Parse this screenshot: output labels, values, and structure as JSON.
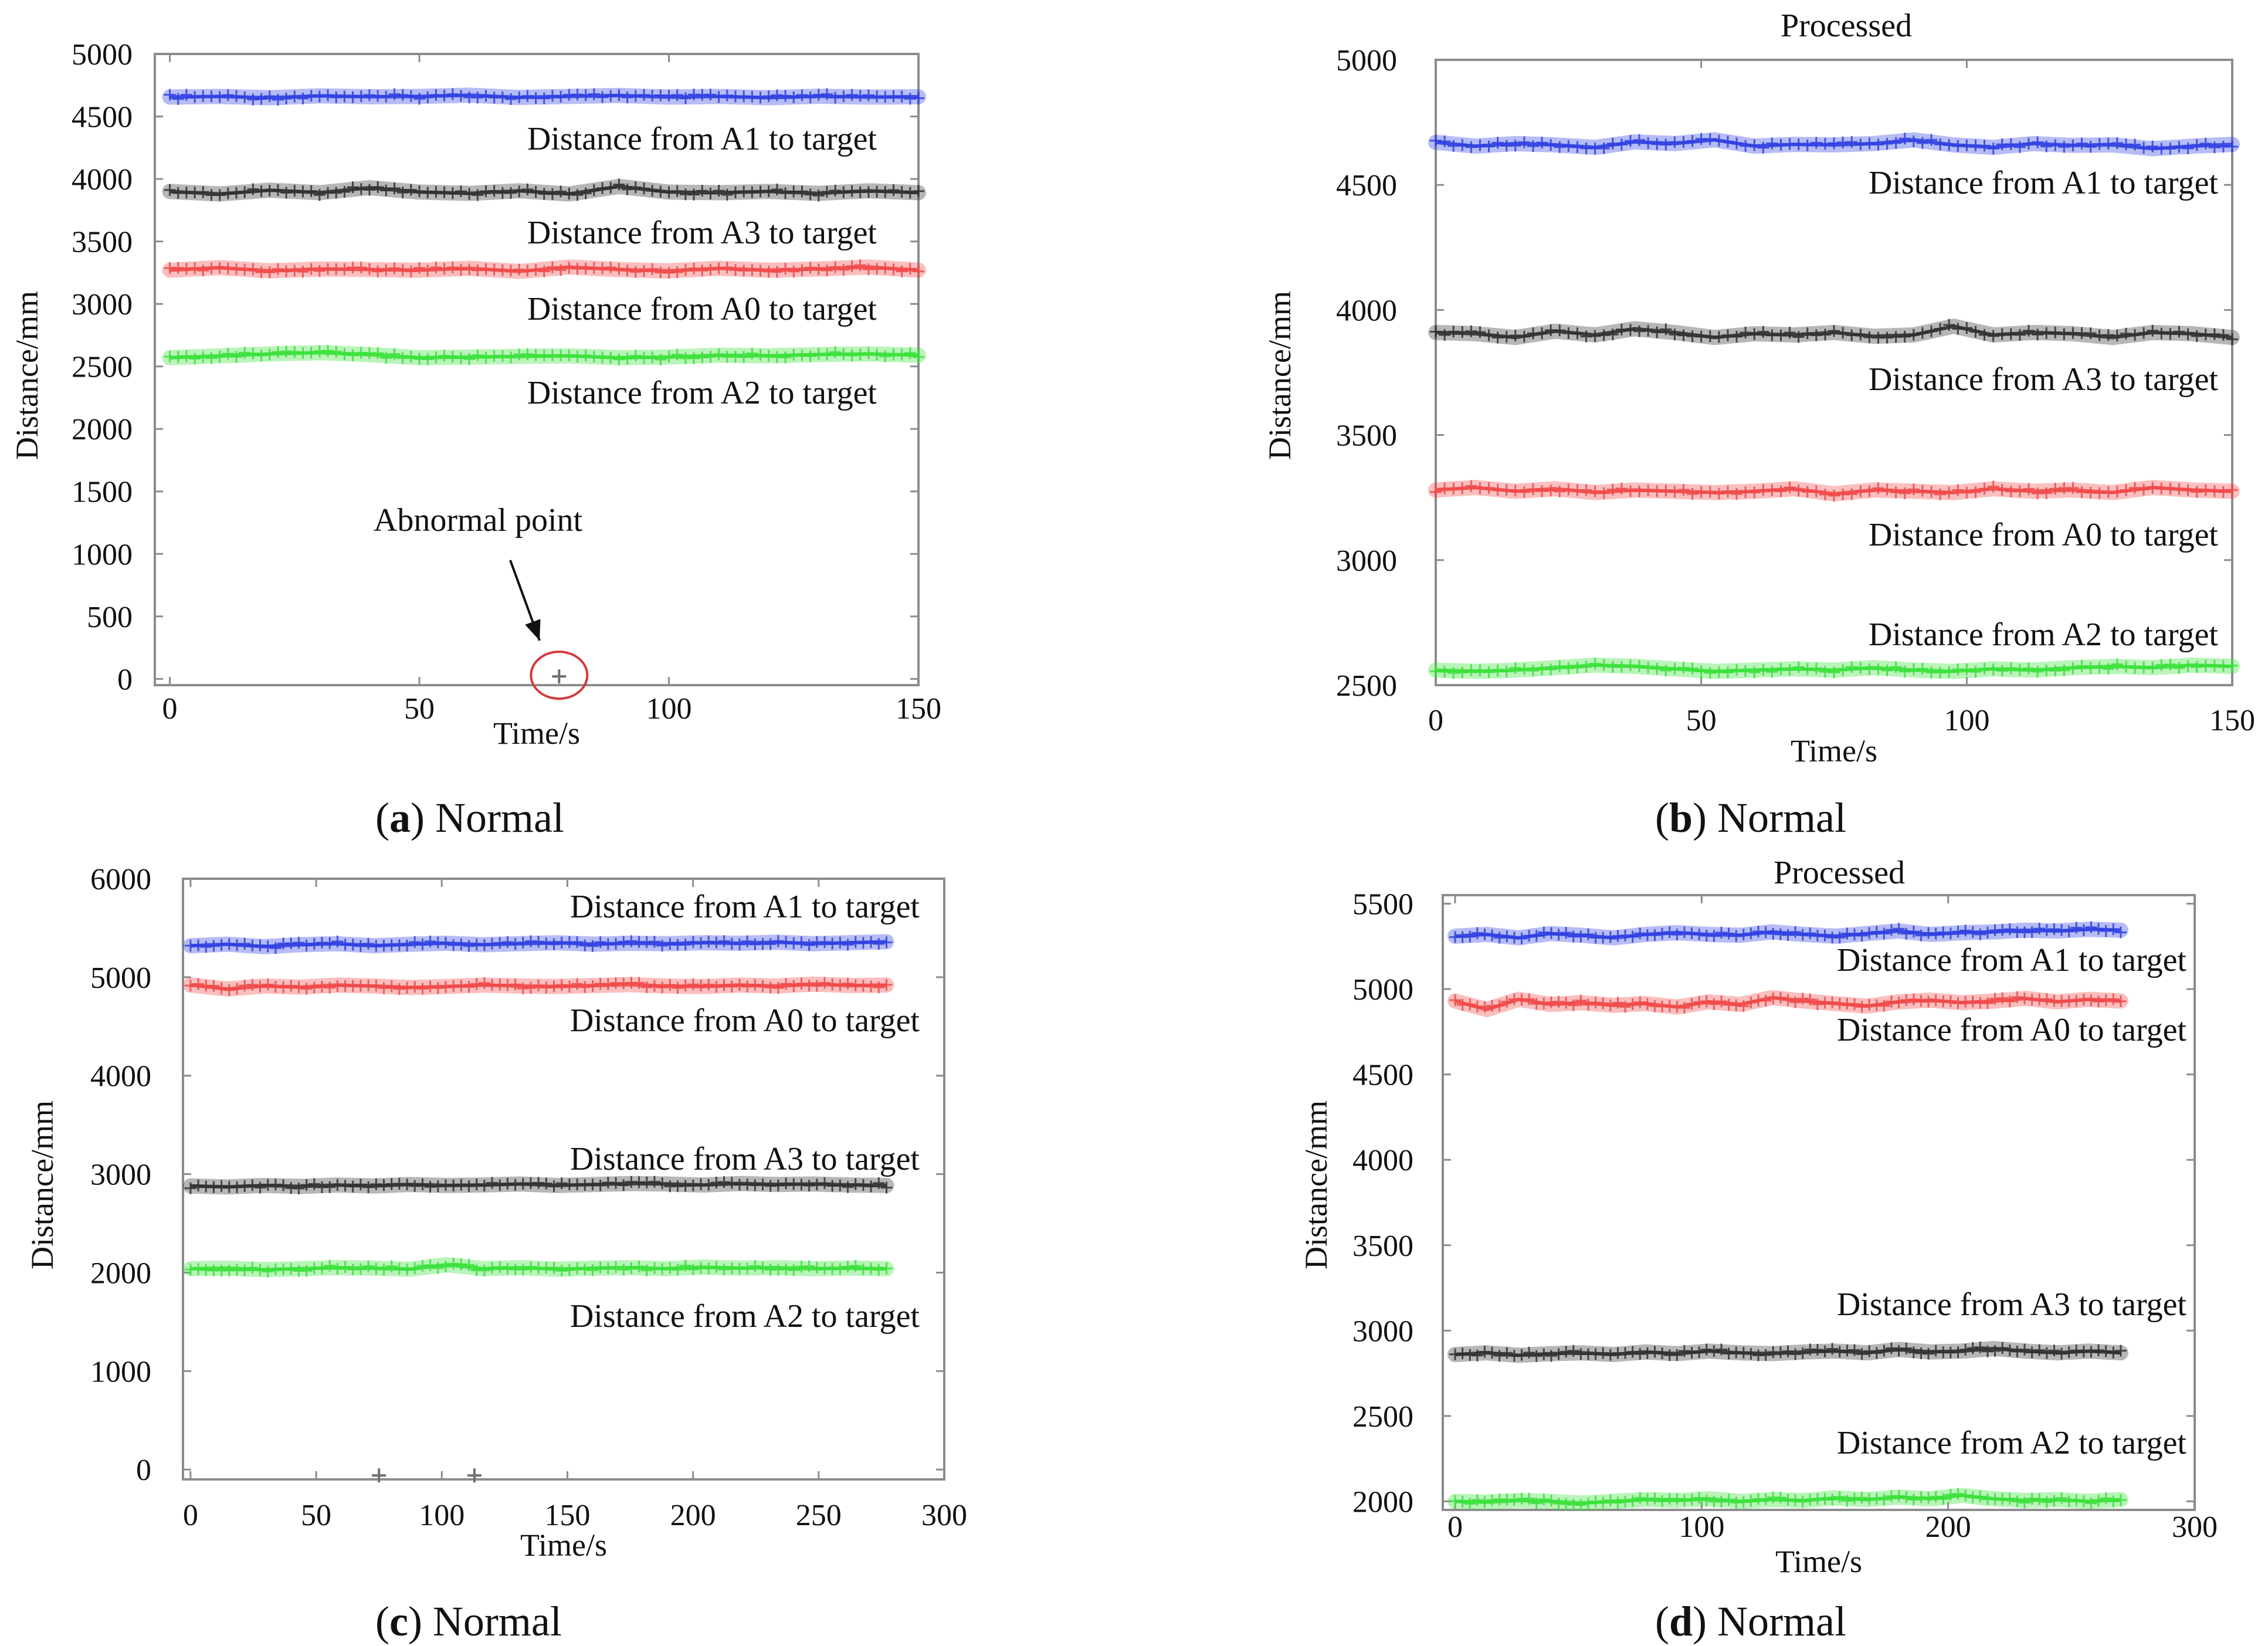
{
  "chart_data": [
    {
      "panel": "a",
      "type": "line",
      "title": "",
      "caption_letter": "a",
      "caption_text": "Normal",
      "xlabel": "Time/s",
      "ylabel": "Distance/mm",
      "xlim": [
        -3,
        150
      ],
      "ylim": [
        -50,
        5000
      ],
      "xticks": [
        0,
        50,
        100,
        150
      ],
      "yticks": [
        0,
        500,
        1000,
        1500,
        2000,
        2500,
        3000,
        3500,
        4000,
        4500,
        5000
      ],
      "series": [
        {
          "name": "Distance from A1 to target",
          "color": "#2f3fe0",
          "x_end": 150,
          "values": [
            4655,
            4660,
            4650,
            4665,
            4658,
            4660,
            4670,
            4652,
            4660,
            4668,
            4655,
            4660,
            4650,
            4662,
            4655,
            4658
          ]
        },
        {
          "name": "Distance from A3 to target",
          "color": "#303030",
          "x_end": 150,
          "values": [
            3900,
            3880,
            3910,
            3890,
            3930,
            3895,
            3885,
            3905,
            3880,
            3940,
            3895,
            3890,
            3900,
            3885,
            3905,
            3890
          ]
        },
        {
          "name": "Distance from A0 to target",
          "color": "#f04848",
          "x_end": 150,
          "values": [
            3270,
            3290,
            3265,
            3280,
            3275,
            3270,
            3285,
            3260,
            3295,
            3275,
            3265,
            3285,
            3270,
            3280,
            3295,
            3270
          ]
        },
        {
          "name": "Distance from A2 to target",
          "color": "#39e039",
          "x_end": 150,
          "values": [
            2570,
            2585,
            2600,
            2610,
            2595,
            2570,
            2575,
            2580,
            2585,
            2570,
            2575,
            2590,
            2585,
            2595,
            2600,
            2590
          ]
        }
      ],
      "outliers": [
        {
          "x": 78,
          "y": 20
        }
      ],
      "annotation": {
        "text": "Abnormal point",
        "x": 78,
        "y": 20
      }
    },
    {
      "panel": "b",
      "type": "line",
      "title": "Processed",
      "caption_letter": "b",
      "caption_text": "Normal",
      "xlabel": "Time/s",
      "ylabel": "Distance/mm",
      "xlim": [
        0,
        150
      ],
      "ylim": [
        2500,
        5000
      ],
      "xticks": [
        0,
        50,
        100,
        150
      ],
      "yticks": [
        2500,
        3000,
        3500,
        4000,
        4500,
        5000
      ],
      "series": [
        {
          "name": "Distance from A1 to target",
          "color": "#2f3fe0",
          "x_end": 150,
          "values": [
            4670,
            4655,
            4665,
            4660,
            4650,
            4672,
            4665,
            4680,
            4655,
            4662,
            4660,
            4665,
            4680,
            4660,
            4650,
            4665,
            4658,
            4660,
            4645,
            4655,
            4662
          ]
        },
        {
          "name": "Distance from A3 to target",
          "color": "#303030",
          "x_end": 150,
          "values": [
            3910,
            3905,
            3890,
            3915,
            3900,
            3925,
            3910,
            3890,
            3905,
            3900,
            3910,
            3895,
            3900,
            3935,
            3900,
            3910,
            3905,
            3890,
            3910,
            3905,
            3890
          ]
        },
        {
          "name": "Distance from A0 to target",
          "color": "#f04848",
          "x_end": 150,
          "values": [
            3280,
            3290,
            3275,
            3285,
            3270,
            3280,
            3275,
            3270,
            3275,
            3285,
            3265,
            3280,
            3275,
            3270,
            3285,
            3275,
            3280,
            3270,
            3290,
            3280,
            3275
          ]
        },
        {
          "name": "Distance from A2 to target",
          "color": "#39e039",
          "x_end": 150,
          "values": [
            2560,
            2555,
            2560,
            2570,
            2580,
            2575,
            2565,
            2555,
            2560,
            2565,
            2560,
            2570,
            2560,
            2555,
            2565,
            2560,
            2570,
            2575,
            2570,
            2580,
            2575
          ]
        }
      ]
    },
    {
      "panel": "c",
      "type": "line",
      "title": "",
      "caption_letter": "c",
      "caption_text": "Normal",
      "xlabel": "Time/s",
      "ylabel": "Distance/mm",
      "xlim": [
        -3,
        300
      ],
      "ylim": [
        -100,
        6000
      ],
      "xticks": [
        0,
        50,
        100,
        150,
        200,
        250,
        300
      ],
      "yticks": [
        0,
        1000,
        2000,
        3000,
        4000,
        5000,
        6000
      ],
      "series": [
        {
          "name": "Distance from A1 to target",
          "color": "#2f3fe0",
          "x_end": 277,
          "values": [
            5320,
            5335,
            5310,
            5330,
            5340,
            5320,
            5335,
            5345,
            5330,
            5340,
            5350,
            5335,
            5345,
            5340,
            5350,
            5345,
            5355,
            5340,
            5350,
            5360
          ]
        },
        {
          "name": "Distance from A0 to target",
          "color": "#f04848",
          "x_end": 277,
          "values": [
            4920,
            4880,
            4910,
            4900,
            4920,
            4910,
            4895,
            4905,
            4920,
            4910,
            4905,
            4915,
            4925,
            4910,
            4905,
            4920,
            4910,
            4930,
            4915,
            4920
          ]
        },
        {
          "name": "Distance from A3 to target",
          "color": "#303030",
          "x_end": 277,
          "values": [
            2880,
            2870,
            2885,
            2875,
            2890,
            2880,
            2895,
            2885,
            2890,
            2900,
            2885,
            2895,
            2905,
            2900,
            2890,
            2905,
            2895,
            2900,
            2890,
            2885
          ]
        },
        {
          "name": "Distance from A2 to target",
          "color": "#39e039",
          "x_end": 277,
          "values": [
            2040,
            2045,
            2030,
            2040,
            2050,
            2045,
            2035,
            2080,
            2040,
            2050,
            2035,
            2045,
            2050,
            2040,
            2055,
            2045,
            2050,
            2040,
            2045,
            2040
          ]
        }
      ],
      "outliers": [
        {
          "x": 75,
          "y": -60
        },
        {
          "x": 113,
          "y": -60
        }
      ]
    },
    {
      "panel": "d",
      "type": "line",
      "title": "Processed",
      "caption_letter": "d",
      "caption_text": "Normal",
      "xlabel": "Time/s",
      "ylabel": "Distance/mm",
      "xlim": [
        -5,
        300
      ],
      "ylim": [
        1950,
        5550
      ],
      "xticks": [
        0,
        100,
        200,
        300
      ],
      "yticks": [
        2000,
        2500,
        3000,
        3500,
        4000,
        4500,
        5000,
        5500
      ],
      "series": [
        {
          "name": "Distance from A1 to target",
          "color": "#2f3fe0",
          "x_end": 270,
          "values": [
            5310,
            5320,
            5300,
            5325,
            5315,
            5300,
            5320,
            5330,
            5320,
            5315,
            5335,
            5320,
            5310,
            5325,
            5340,
            5320,
            5330,
            5335,
            5345,
            5340,
            5350,
            5345
          ]
        },
        {
          "name": "Distance from A0 to target",
          "color": "#f04848",
          "x_end": 270,
          "values": [
            4930,
            4880,
            4940,
            4910,
            4920,
            4905,
            4915,
            4895,
            4925,
            4910,
            4950,
            4930,
            4915,
            4900,
            4925,
            4935,
            4920,
            4930,
            4945,
            4925,
            4940,
            4930
          ]
        },
        {
          "name": "Distance from A3 to target",
          "color": "#303030",
          "x_end": 270,
          "values": [
            2860,
            2870,
            2855,
            2865,
            2870,
            2860,
            2875,
            2865,
            2880,
            2870,
            2865,
            2875,
            2880,
            2870,
            2890,
            2875,
            2880,
            2895,
            2880,
            2870,
            2880,
            2870
          ]
        },
        {
          "name": "Distance from A2 to target",
          "color": "#39e039",
          "x_end": 270,
          "values": [
            2000,
            1995,
            2005,
            2000,
            1990,
            2000,
            2010,
            2005,
            2015,
            2000,
            2010,
            2005,
            2020,
            2010,
            2025,
            2015,
            2035,
            2015,
            2005,
            2010,
            2000,
            2010
          ]
        }
      ]
    }
  ]
}
